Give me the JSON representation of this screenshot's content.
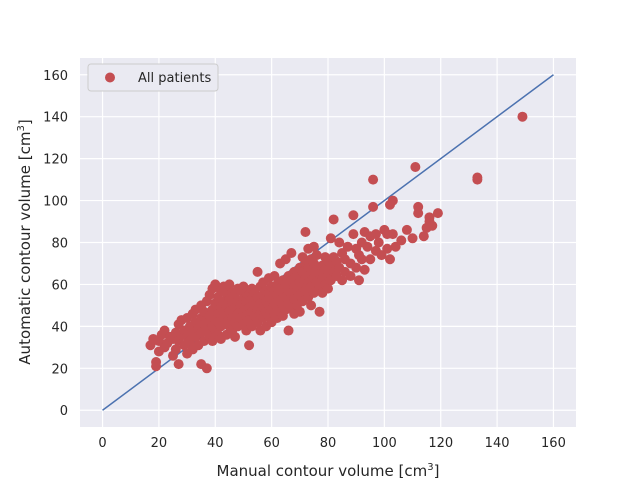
{
  "chart_data": {
    "type": "scatter",
    "xlabel": "Manual contour volume [cm",
    "xlabel_sup": "3",
    "xlabel_end": "]",
    "ylabel": "Automatic contour volume [cm",
    "ylabel_sup": "3",
    "ylabel_end": "]",
    "xlim": [
      -8,
      168
    ],
    "ylim": [
      -8,
      168
    ],
    "xticks": [
      0,
      20,
      40,
      60,
      80,
      100,
      120,
      140,
      160
    ],
    "yticks": [
      0,
      20,
      40,
      60,
      80,
      100,
      120,
      140,
      160
    ],
    "grid": true,
    "legend": "top-left",
    "series": [
      {
        "name": "All patients",
        "color": "#c44e52",
        "points": [
          [
            17,
            31
          ],
          [
            18,
            34
          ],
          [
            19,
            23
          ],
          [
            19,
            21
          ],
          [
            20,
            33
          ],
          [
            20,
            28
          ],
          [
            21,
            36
          ],
          [
            22,
            30
          ],
          [
            22,
            38
          ],
          [
            23,
            32
          ],
          [
            24,
            35
          ],
          [
            25,
            34
          ],
          [
            25,
            26
          ],
          [
            26,
            37
          ],
          [
            26,
            29
          ],
          [
            27,
            41
          ],
          [
            27,
            33
          ],
          [
            27,
            22
          ],
          [
            28,
            36
          ],
          [
            28,
            43
          ],
          [
            29,
            31
          ],
          [
            29,
            38
          ],
          [
            30,
            44
          ],
          [
            30,
            35
          ],
          [
            30,
            27
          ],
          [
            31,
            40
          ],
          [
            31,
            33
          ],
          [
            32,
            46
          ],
          [
            32,
            37
          ],
          [
            32,
            29
          ],
          [
            33,
            42
          ],
          [
            33,
            35
          ],
          [
            33,
            48
          ],
          [
            34,
            39
          ],
          [
            34,
            31
          ],
          [
            35,
            44
          ],
          [
            35,
            37
          ],
          [
            35,
            50
          ],
          [
            35,
            22
          ],
          [
            36,
            41
          ],
          [
            36,
            47
          ],
          [
            36,
            33
          ],
          [
            37,
            52
          ],
          [
            37,
            43
          ],
          [
            37,
            38
          ],
          [
            37,
            20
          ],
          [
            38,
            45
          ],
          [
            38,
            55
          ],
          [
            38,
            35
          ],
          [
            39,
            48
          ],
          [
            39,
            40
          ],
          [
            39,
            58
          ],
          [
            39,
            33
          ],
          [
            40,
            43
          ],
          [
            40,
            51
          ],
          [
            40,
            60
          ],
          [
            40,
            38
          ],
          [
            41,
            46
          ],
          [
            41,
            54
          ],
          [
            41,
            36
          ],
          [
            41,
            42
          ],
          [
            42,
            49
          ],
          [
            42,
            57
          ],
          [
            42,
            40
          ],
          [
            42,
            34
          ],
          [
            43,
            44
          ],
          [
            43,
            52
          ],
          [
            43,
            59
          ],
          [
            43,
            47
          ],
          [
            44,
            50
          ],
          [
            44,
            42
          ],
          [
            44,
            56
          ],
          [
            44,
            36
          ],
          [
            45,
            47
          ],
          [
            45,
            53
          ],
          [
            45,
            40
          ],
          [
            45,
            60
          ],
          [
            46,
            44
          ],
          [
            46,
            51
          ],
          [
            46,
            56
          ],
          [
            46,
            38
          ],
          [
            47,
            49
          ],
          [
            47,
            42
          ],
          [
            47,
            55
          ],
          [
            47,
            35
          ],
          [
            48,
            46
          ],
          [
            48,
            52
          ],
          [
            48,
            58
          ],
          [
            48,
            40
          ],
          [
            49,
            50
          ],
          [
            49,
            44
          ],
          [
            49,
            57
          ],
          [
            50,
            47
          ],
          [
            50,
            53
          ],
          [
            50,
            41
          ],
          [
            50,
            59
          ],
          [
            51,
            45
          ],
          [
            51,
            52
          ],
          [
            51,
            56
          ],
          [
            51,
            38
          ],
          [
            52,
            49
          ],
          [
            52,
            43
          ],
          [
            52,
            55
          ],
          [
            52,
            31
          ],
          [
            53,
            47
          ],
          [
            53,
            53
          ],
          [
            53,
            58
          ],
          [
            53,
            40
          ],
          [
            54,
            50
          ],
          [
            54,
            45
          ],
          [
            54,
            56
          ],
          [
            55,
            48
          ],
          [
            55,
            54
          ],
          [
            55,
            42
          ],
          [
            55,
            66
          ],
          [
            56,
            51
          ],
          [
            56,
            46
          ],
          [
            56,
            59
          ],
          [
            56,
            38
          ],
          [
            57,
            49
          ],
          [
            57,
            55
          ],
          [
            57,
            44
          ],
          [
            57,
            61
          ],
          [
            58,
            52
          ],
          [
            58,
            47
          ],
          [
            58,
            57
          ],
          [
            58,
            40
          ],
          [
            59,
            50
          ],
          [
            59,
            56
          ],
          [
            59,
            45
          ],
          [
            59,
            63
          ],
          [
            60,
            53
          ],
          [
            60,
            48
          ],
          [
            60,
            59
          ],
          [
            60,
            42
          ],
          [
            61,
            51
          ],
          [
            61,
            57
          ],
          [
            61,
            46
          ],
          [
            61,
            64
          ],
          [
            62,
            55
          ],
          [
            62,
            49
          ],
          [
            62,
            60
          ],
          [
            62,
            44
          ],
          [
            63,
            52
          ],
          [
            63,
            58
          ],
          [
            63,
            47
          ],
          [
            63,
            70
          ],
          [
            64,
            56
          ],
          [
            64,
            50
          ],
          [
            64,
            62
          ],
          [
            64,
            45
          ],
          [
            65,
            54
          ],
          [
            65,
            60
          ],
          [
            65,
            48
          ],
          [
            65,
            72
          ],
          [
            66,
            57
          ],
          [
            66,
            51
          ],
          [
            66,
            64
          ],
          [
            66,
            38
          ],
          [
            67,
            55
          ],
          [
            67,
            62
          ],
          [
            67,
            49
          ],
          [
            67,
            75
          ],
          [
            68,
            59
          ],
          [
            68,
            53
          ],
          [
            68,
            66
          ],
          [
            68,
            46
          ],
          [
            69,
            57
          ],
          [
            69,
            64
          ],
          [
            69,
            50
          ],
          [
            70,
            61
          ],
          [
            70,
            55
          ],
          [
            70,
            68
          ],
          [
            70,
            47
          ],
          [
            71,
            59
          ],
          [
            71,
            66
          ],
          [
            71,
            52
          ],
          [
            71,
            73
          ],
          [
            72,
            63
          ],
          [
            72,
            57
          ],
          [
            72,
            70
          ],
          [
            72,
            85
          ],
          [
            73,
            61
          ],
          [
            73,
            68
          ],
          [
            73,
            54
          ],
          [
            73,
            77
          ],
          [
            74,
            65
          ],
          [
            74,
            59
          ],
          [
            74,
            72
          ],
          [
            74,
            50
          ],
          [
            75,
            63
          ],
          [
            75,
            70
          ],
          [
            75,
            56
          ],
          [
            75,
            78
          ],
          [
            76,
            67
          ],
          [
            76,
            61
          ],
          [
            76,
            74
          ],
          [
            77,
            65
          ],
          [
            77,
            58
          ],
          [
            77,
            47
          ],
          [
            78,
            69
          ],
          [
            78,
            63
          ],
          [
            78,
            56
          ],
          [
            79,
            67
          ],
          [
            79,
            60
          ],
          [
            79,
            73
          ],
          [
            80,
            71
          ],
          [
            80,
            64
          ],
          [
            80,
            58
          ],
          [
            81,
            69
          ],
          [
            81,
            62
          ],
          [
            81,
            82
          ],
          [
            82,
            73
          ],
          [
            82,
            66
          ],
          [
            82,
            91
          ],
          [
            83,
            71
          ],
          [
            83,
            64
          ],
          [
            84,
            80
          ],
          [
            84,
            68
          ],
          [
            85,
            75
          ],
          [
            85,
            62
          ],
          [
            86,
            72
          ],
          [
            86,
            66
          ],
          [
            87,
            78
          ],
          [
            88,
            70
          ],
          [
            88,
            64
          ],
          [
            89,
            84
          ],
          [
            89,
            93
          ],
          [
            90,
            77
          ],
          [
            90,
            68
          ],
          [
            91,
            74
          ],
          [
            91,
            62
          ],
          [
            92,
            80
          ],
          [
            92,
            72
          ],
          [
            93,
            85
          ],
          [
            93,
            67
          ],
          [
            94,
            78
          ],
          [
            95,
            83
          ],
          [
            95,
            72
          ],
          [
            96,
            110
          ],
          [
            96,
            97
          ],
          [
            97,
            84
          ],
          [
            97,
            76
          ],
          [
            98,
            80
          ],
          [
            99,
            74
          ],
          [
            100,
            86
          ],
          [
            101,
            84
          ],
          [
            101,
            77
          ],
          [
            102,
            98
          ],
          [
            102,
            72
          ],
          [
            103,
            84
          ],
          [
            103,
            100
          ],
          [
            104,
            78
          ],
          [
            106,
            81
          ],
          [
            108,
            86
          ],
          [
            110,
            82
          ],
          [
            111,
            116
          ],
          [
            112,
            94
          ],
          [
            112,
            97
          ],
          [
            114,
            83
          ],
          [
            115,
            87
          ],
          [
            116,
            90
          ],
          [
            116,
            92
          ],
          [
            117,
            88
          ],
          [
            119,
            94
          ],
          [
            133,
            110
          ],
          [
            133,
            111
          ],
          [
            149,
            140
          ]
        ]
      }
    ],
    "reference_line": {
      "color": "#4c72b0",
      "from": [
        0,
        0
      ],
      "to": [
        160,
        160
      ]
    }
  }
}
